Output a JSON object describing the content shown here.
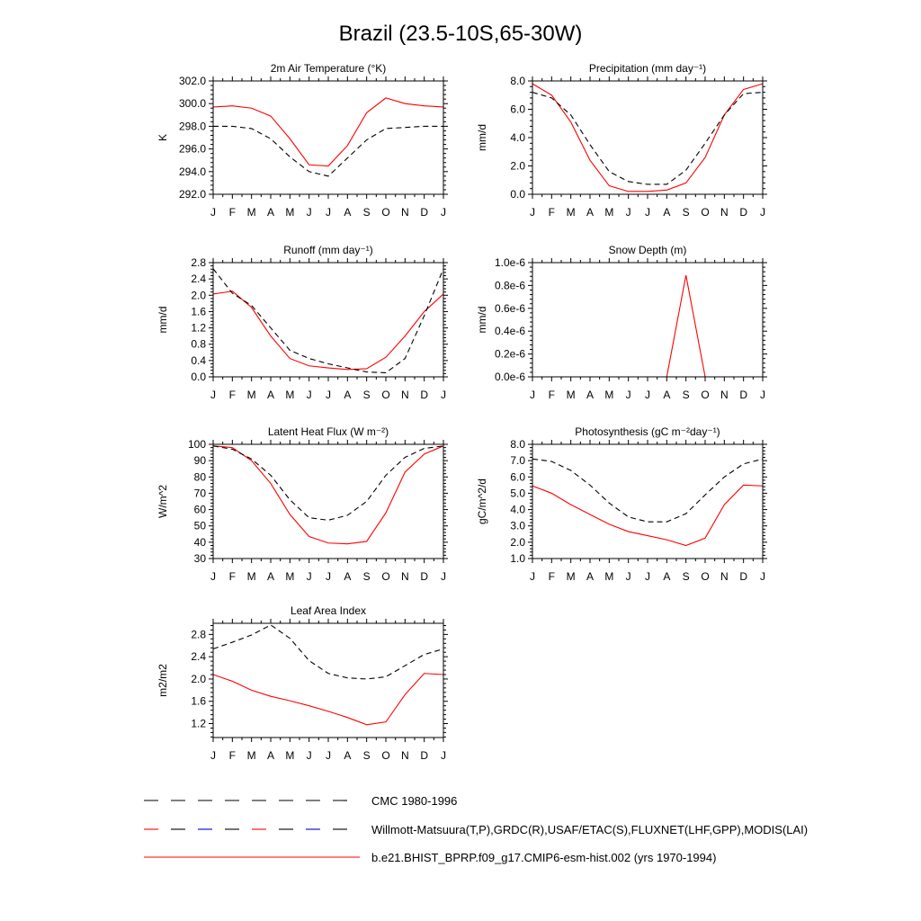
{
  "title": "Brazil (23.5-10S,65-30W)",
  "colors": {
    "model": "#ff0000",
    "obs": "#000000",
    "obs2": "#0000cc",
    "axes": "#000000"
  },
  "months": [
    "J",
    "F",
    "M",
    "A",
    "M",
    "J",
    "J",
    "A",
    "S",
    "O",
    "N",
    "D",
    "J"
  ],
  "legend": [
    {
      "label": "CMC 1980-1996",
      "style": "dashed",
      "color": "#000000"
    },
    {
      "label": "Willmott-Matsuura(T,P),GRDC(R),USAF/ETAC(S),FLUXNET(LHF,GPP),MODIS(LAI)",
      "style": "dashed-mixed",
      "color": "#000000"
    },
    {
      "label": "b.e21.BHIST_BPRP.f09_g17.CMIP6-esm-hist.002 (yrs 1970-1994)",
      "style": "solid",
      "color": "#ff0000"
    }
  ],
  "chart_data": [
    {
      "type": "line",
      "title": "2m Air Temperature (°K)",
      "ylabel": "K",
      "ylim": [
        292,
        302
      ],
      "yticks": [
        292,
        294,
        296,
        298,
        300,
        302
      ],
      "ytick_labels": [
        "292.0",
        "294.0",
        "296.0",
        "298.0",
        "300.0",
        "302.0"
      ],
      "series": [
        {
          "style": "solid",
          "color": "#ff0000",
          "values": [
            299.7,
            299.8,
            299.6,
            298.9,
            296.9,
            294.6,
            294.5,
            296.3,
            299.2,
            300.5,
            300.0,
            299.8,
            299.7
          ]
        },
        {
          "style": "dashed",
          "color": "#000000",
          "values": [
            298.0,
            298.0,
            297.8,
            296.9,
            295.3,
            294.0,
            293.6,
            295.2,
            296.8,
            297.8,
            297.9,
            298.0,
            298.0
          ]
        }
      ]
    },
    {
      "type": "line",
      "title": "Precipitation (mm day⁻¹)",
      "ylabel": "mm/d",
      "ylim": [
        0,
        8
      ],
      "yticks": [
        0,
        2,
        4,
        6,
        8
      ],
      "ytick_labels": [
        "0.0",
        "2.0",
        "4.0",
        "6.0",
        "8.0"
      ],
      "series": [
        {
          "style": "solid",
          "color": "#ff0000",
          "values": [
            7.8,
            7.0,
            5.1,
            2.4,
            0.6,
            0.2,
            0.2,
            0.3,
            0.8,
            2.6,
            5.6,
            7.4,
            7.8
          ]
        },
        {
          "style": "dashed",
          "color": "#000000",
          "values": [
            7.2,
            6.8,
            5.6,
            3.5,
            1.6,
            0.9,
            0.7,
            0.7,
            1.7,
            3.6,
            5.6,
            7.1,
            7.2
          ]
        }
      ]
    },
    {
      "type": "line",
      "title": "Runoff (mm day⁻¹)",
      "ylabel": "mm/d",
      "ylim": [
        0,
        2.8
      ],
      "yticks": [
        0,
        0.4,
        0.8,
        1.2,
        1.6,
        2.0,
        2.4,
        2.8
      ],
      "ytick_labels": [
        "0.0",
        "0.4",
        "0.8",
        "1.2",
        "1.6",
        "2.0",
        "2.4",
        "2.8"
      ],
      "series": [
        {
          "style": "solid",
          "color": "#ff0000",
          "values": [
            2.03,
            2.1,
            1.7,
            1.0,
            0.45,
            0.27,
            0.22,
            0.18,
            0.2,
            0.48,
            1.0,
            1.6,
            2.03
          ]
        },
        {
          "style": "dashed",
          "color": "#000000",
          "values": [
            2.65,
            2.05,
            1.75,
            1.2,
            0.65,
            0.45,
            0.32,
            0.22,
            0.12,
            0.1,
            0.45,
            1.5,
            2.65
          ]
        }
      ]
    },
    {
      "type": "line",
      "title": "Snow Depth (m)",
      "ylabel": "mm/d",
      "ylim": [
        0,
        1e-06
      ],
      "yticks": [
        0,
        2e-07,
        4e-07,
        6e-07,
        8e-07,
        1e-06
      ],
      "ytick_labels": [
        "0.0e-6",
        "0.2e-6",
        "0.4e-6",
        "0.6e-6",
        "0.8e-6",
        "1.0e-6"
      ],
      "series": [
        {
          "style": "solid",
          "color": "#ff0000",
          "values": [
            0,
            0,
            0,
            0,
            0,
            0,
            0,
            0,
            8.9e-07,
            0,
            0,
            0,
            0
          ]
        },
        {
          "style": "dashed",
          "color": "#000000",
          "values": [
            0,
            0,
            0,
            0,
            0,
            0,
            0,
            0,
            0,
            0,
            0,
            0,
            0
          ]
        }
      ]
    },
    {
      "type": "line",
      "title": "Latent Heat Flux (W m⁻²)",
      "ylabel": "W/m^2",
      "ylim": [
        30,
        100
      ],
      "yticks": [
        30,
        40,
        50,
        60,
        70,
        80,
        90,
        100
      ],
      "ytick_labels": [
        "30",
        "40",
        "50",
        "60",
        "70",
        "80",
        "90",
        "100"
      ],
      "series": [
        {
          "style": "solid",
          "color": "#ff0000",
          "values": [
            99,
            98,
            90,
            76,
            57,
            43.5,
            39.5,
            39,
            40.5,
            58,
            83,
            94,
            99
          ]
        },
        {
          "style": "dashed",
          "color": "#000000",
          "values": [
            99,
            97,
            91,
            81,
            66,
            55,
            53.5,
            56.5,
            65,
            81,
            92,
            97.5,
            99
          ]
        }
      ]
    },
    {
      "type": "line",
      "title": "Photosynthesis (gC m⁻²day⁻¹)",
      "ylabel": "gC/m^2/d",
      "ylim": [
        1,
        8
      ],
      "yticks": [
        1,
        2,
        3,
        4,
        5,
        6,
        7,
        8
      ],
      "ytick_labels": [
        "1.0",
        "2.0",
        "3.0",
        "4.0",
        "5.0",
        "6.0",
        "7.0",
        "8.0"
      ],
      "series": [
        {
          "style": "solid",
          "color": "#ff0000",
          "values": [
            5.45,
            5.0,
            4.3,
            3.7,
            3.1,
            2.65,
            2.4,
            2.15,
            1.8,
            2.25,
            4.3,
            5.5,
            5.45
          ]
        },
        {
          "style": "dashed",
          "color": "#000000",
          "values": [
            7.1,
            6.95,
            6.4,
            5.5,
            4.4,
            3.55,
            3.25,
            3.25,
            3.75,
            4.9,
            6.0,
            6.8,
            7.1
          ]
        }
      ]
    },
    {
      "type": "line",
      "title": "Leaf Area Index",
      "ylabel": "m2/m2",
      "ylim": [
        0.95,
        3.0
      ],
      "yticks": [
        1.2,
        1.6,
        2.0,
        2.4,
        2.8
      ],
      "ytick_labels": [
        "1.2",
        "1.6",
        "2.0",
        "2.4",
        "2.8"
      ],
      "series": [
        {
          "style": "solid",
          "color": "#ff0000",
          "values": [
            2.08,
            1.96,
            1.8,
            1.69,
            1.61,
            1.52,
            1.42,
            1.31,
            1.18,
            1.23,
            1.72,
            2.1,
            2.08
          ]
        },
        {
          "style": "dashed",
          "color": "#000000",
          "values": [
            2.54,
            2.66,
            2.79,
            2.97,
            2.73,
            2.33,
            2.1,
            2.02,
            2.0,
            2.04,
            2.24,
            2.44,
            2.54
          ]
        }
      ]
    }
  ]
}
